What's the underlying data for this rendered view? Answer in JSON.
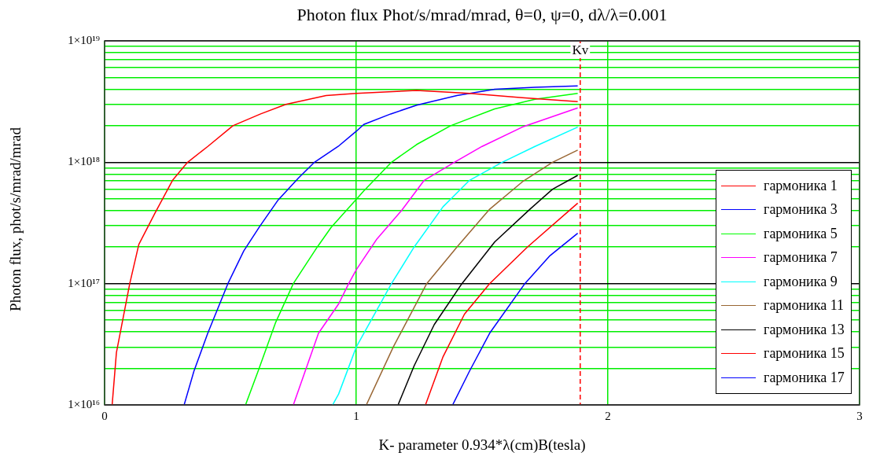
{
  "chart_data": {
    "type": "line",
    "title": "Photon flux Phot/s/mrad/mrad, θ=0, ψ=0, dλ/λ=0.001",
    "xlabel": "K- parameter 0.934*λ(cm)B(tesla)",
    "ylabel": "Photon flux, phot/s/mrad/mrad",
    "log": "y",
    "grid": true,
    "legend": "bottom right",
    "marker": "none",
    "line_style": "solid",
    "xlim": [
      0,
      3
    ],
    "xticks": [
      0,
      1,
      2,
      3
    ],
    "ylim": [
      1e+16,
      1e+19
    ],
    "yticks": [
      {
        "value": 1e+16,
        "label": "1×10¹⁶"
      },
      {
        "value": 2e+16,
        "label": null
      },
      {
        "value": 3e+16,
        "label": null
      },
      {
        "value": 4e+16,
        "label": null
      },
      {
        "value": 5e+16,
        "label": null
      },
      {
        "value": 6e+16,
        "label": null
      },
      {
        "value": 7e+16,
        "label": null
      },
      {
        "value": 8e+16,
        "label": null
      },
      {
        "value": 9e+16,
        "label": null
      },
      {
        "value": 1e+17,
        "label": "1×10¹⁷"
      },
      {
        "value": 2e+17,
        "label": null
      },
      {
        "value": 3e+17,
        "label": null
      },
      {
        "value": 4e+17,
        "label": null
      },
      {
        "value": 5e+17,
        "label": null
      },
      {
        "value": 6e+17,
        "label": null
      },
      {
        "value": 7e+17,
        "label": null
      },
      {
        "value": 8e+17,
        "label": null
      },
      {
        "value": 9e+17,
        "label": null
      },
      {
        "value": 1e+18,
        "label": "1×10¹⁸"
      },
      {
        "value": 2e+18,
        "label": null
      },
      {
        "value": 3e+18,
        "label": null
      },
      {
        "value": 4e+18,
        "label": null
      },
      {
        "value": 5e+18,
        "label": null
      },
      {
        "value": 6e+18,
        "label": null
      },
      {
        "value": 7e+18,
        "label": null
      },
      {
        "value": 8e+18,
        "label": null
      },
      {
        "value": 9e+18,
        "label": null
      },
      {
        "value": 1e+19,
        "label": "1×10¹⁹"
      }
    ],
    "ref_lines": [
      {
        "axis": "x",
        "value": 1.89,
        "label": "Kv",
        "color": "#ff0000",
        "line_style": "dashed"
      }
    ],
    "series": [
      {
        "name": "гармоника 1",
        "color": "#ff0000",
        "x": [
          0.03,
          0.047,
          0.1,
          0.136,
          0.2,
          0.27,
          0.33,
          0.41,
          0.51,
          0.62,
          0.72,
          0.88,
          1.0,
          1.24,
          1.45,
          1.66,
          1.88
        ],
        "values": [
          1e+16,
          2.7e+16,
          1e+17,
          2.1e+17,
          3.8e+17,
          7.1e+17,
          1e+18,
          1.35e+18,
          2e+18,
          2.5e+18,
          3e+18,
          3.55e+18,
          3.7e+18,
          3.9e+18,
          3.7e+18,
          3.4e+18,
          3.16e+18
        ]
      },
      {
        "name": "гармоника 3",
        "color": "#0000ff",
        "x": [
          0.316,
          0.355,
          0.41,
          0.49,
          0.553,
          0.616,
          0.69,
          0.77,
          0.834,
          0.928,
          1.0,
          1.03,
          1.137,
          1.24,
          1.4,
          1.55,
          1.71,
          1.88
        ],
        "values": [
          1e+16,
          1.9e+16,
          3.9e+16,
          1e+17,
          1.86e+17,
          2.95e+17,
          4.9e+17,
          7.4e+17,
          1e+18,
          1.35e+18,
          1.8e+18,
          2.05e+18,
          2.5e+18,
          2.95e+18,
          3.55e+18,
          4e+18,
          4.15e+18,
          4.25e+18
        ]
      },
      {
        "name": "гармоника 5",
        "color": "#00ff00",
        "x": [
          0.56,
          0.61,
          0.68,
          0.75,
          0.845,
          0.9,
          1.03,
          1.14,
          1.24,
          1.375,
          1.55,
          1.71,
          1.88
        ],
        "values": [
          1e+16,
          1.9e+16,
          4.8e+16,
          1e+17,
          2e+17,
          2.9e+17,
          5.8e+17,
          1e+18,
          1.4e+18,
          2e+18,
          2.75e+18,
          3.3e+18,
          3.7e+18
        ]
      },
      {
        "name": "гармоника 7",
        "color": "#ff00ff",
        "x": [
          0.75,
          0.85,
          0.93,
          0.97,
          1.0,
          1.08,
          1.18,
          1.27,
          1.39,
          1.5,
          1.66,
          1.88
        ],
        "values": [
          1e+16,
          3.9e+16,
          6.8e+16,
          1e+17,
          1.3e+17,
          2.3e+17,
          4e+17,
          7.1e+17,
          1e+18,
          1.35e+18,
          1.95e+18,
          2.8e+18
        ]
      },
      {
        "name": "гармоника 9",
        "color": "#00ffff",
        "x": [
          0.906,
          0.93,
          1.0,
          1.14,
          1.23,
          1.345,
          1.45,
          1.58,
          1.71,
          1.88
        ],
        "values": [
          1e+16,
          1.23e+16,
          3e+16,
          1e+17,
          2e+17,
          4.3e+17,
          7.1e+17,
          1e+18,
          1.35e+18,
          1.95e+18
        ]
      },
      {
        "name": "гармоника 11",
        "color": "#996633",
        "x": [
          1.04,
          1.147,
          1.28,
          1.4,
          1.53,
          1.66,
          1.78,
          1.88
        ],
        "values": [
          1e+16,
          3e+16,
          1e+17,
          2e+17,
          4.1e+17,
          6.9e+17,
          1e+18,
          1.26e+18
        ]
      },
      {
        "name": "гармоника 13",
        "color": "#000000",
        "x": [
          1.166,
          1.23,
          1.31,
          1.42,
          1.55,
          1.69,
          1.78,
          1.88
        ],
        "values": [
          1e+16,
          2.1e+16,
          4.6e+16,
          1e+17,
          2.2e+17,
          4.1e+17,
          6e+17,
          7.8e+17
        ]
      },
      {
        "name": "гармоника 15",
        "color": "#ff0000",
        "x": [
          1.275,
          1.345,
          1.43,
          1.53,
          1.68,
          1.88
        ],
        "values": [
          1e+16,
          2.5e+16,
          5.6e+16,
          1e+17,
          2e+17,
          4.6e+17
        ]
      },
      {
        "name": "гармоника 17",
        "color": "#0000ff",
        "x": [
          1.383,
          1.45,
          1.53,
          1.67,
          1.77,
          1.88
        ],
        "values": [
          1e+16,
          1.9e+16,
          3.9e+16,
          1e+17,
          1.7e+17,
          2.6e+17
        ]
      }
    ]
  }
}
